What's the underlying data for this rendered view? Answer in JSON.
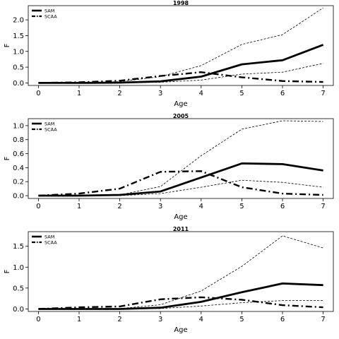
{
  "chart_data": [
    {
      "type": "line",
      "title": "1998",
      "xlabel": "Age",
      "ylabel": "F",
      "x": [
        0,
        1,
        2,
        3,
        4,
        5,
        6,
        7
      ],
      "x_ticks": [
        "0",
        "1",
        "2",
        "3",
        "4",
        "5",
        "6",
        "7"
      ],
      "xlim": [
        -0.25,
        7.25
      ],
      "ylim": [
        -0.08,
        2.45
      ],
      "y_ticks": [
        "0.0",
        "0.5",
        "1.0",
        "1.5",
        "2.0"
      ],
      "y_tick_values": [
        0,
        0.5,
        1.0,
        1.5,
        2.0
      ],
      "legend": {
        "position": "top-left",
        "entries": [
          "SAM",
          "SCAA"
        ]
      },
      "series": [
        {
          "name": "SAM",
          "style": "solid-thick",
          "values": [
            0.0,
            0.0,
            0.01,
            0.05,
            0.2,
            0.59,
            0.72,
            1.21
          ]
        },
        {
          "name": "SAM upper",
          "style": "dashed-thin",
          "values": [
            0.0,
            0.01,
            0.04,
            0.2,
            0.55,
            1.22,
            1.53,
            2.38
          ]
        },
        {
          "name": "SAM lower",
          "style": "dashed-thin",
          "values": [
            0.0,
            0.0,
            0.0,
            0.02,
            0.09,
            0.28,
            0.34,
            0.62
          ]
        },
        {
          "name": "SCAA",
          "style": "dashdot-thick",
          "values": [
            0.0,
            0.02,
            0.07,
            0.22,
            0.34,
            0.18,
            0.06,
            0.03
          ]
        }
      ]
    },
    {
      "type": "line",
      "title": "2005",
      "xlabel": "Age",
      "ylabel": "F",
      "x": [
        0,
        1,
        2,
        3,
        4,
        5,
        6,
        7
      ],
      "x_ticks": [
        "0",
        "1",
        "2",
        "3",
        "4",
        "5",
        "6",
        "7"
      ],
      "xlim": [
        -0.25,
        7.25
      ],
      "ylim": [
        -0.04,
        1.1
      ],
      "y_ticks": [
        "0.0",
        "0.2",
        "0.4",
        "0.6",
        "0.8",
        "1.0"
      ],
      "y_tick_values": [
        0,
        0.2,
        0.4,
        0.6,
        0.8,
        1.0
      ],
      "legend": {
        "position": "top-left",
        "entries": [
          "SAM",
          "SCAA"
        ]
      },
      "series": [
        {
          "name": "SAM",
          "style": "solid-thick",
          "values": [
            0.0,
            0.0,
            0.01,
            0.06,
            0.26,
            0.46,
            0.45,
            0.36
          ]
        },
        {
          "name": "SAM upper",
          "style": "dashed-thin",
          "values": [
            0.0,
            0.0,
            0.01,
            0.13,
            0.57,
            0.95,
            1.07,
            1.06
          ]
        },
        {
          "name": "SAM lower",
          "style": "dashed-thin",
          "values": [
            0.0,
            0.0,
            0.0,
            0.03,
            0.12,
            0.22,
            0.19,
            0.12
          ]
        },
        {
          "name": "SCAA",
          "style": "dashdot-thick",
          "values": [
            0.0,
            0.03,
            0.1,
            0.34,
            0.35,
            0.12,
            0.03,
            0.01
          ]
        }
      ]
    },
    {
      "type": "line",
      "title": "2011",
      "xlabel": "Age",
      "ylabel": "F",
      "x": [
        0,
        1,
        2,
        3,
        4,
        5,
        6,
        7
      ],
      "x_ticks": [
        "0",
        "1",
        "2",
        "3",
        "4",
        "5",
        "6",
        "7"
      ],
      "xlim": [
        -0.25,
        7.25
      ],
      "ylim": [
        -0.06,
        1.85
      ],
      "y_ticks": [
        "0.0",
        "0.5",
        "1.0",
        "1.5"
      ],
      "y_tick_values": [
        0,
        0.5,
        1.0,
        1.5
      ],
      "legend": {
        "position": "top-left",
        "entries": [
          "SAM",
          "SCAA"
        ]
      },
      "series": [
        {
          "name": "SAM",
          "style": "solid-thick",
          "values": [
            0.0,
            0.0,
            0.0,
            0.03,
            0.17,
            0.4,
            0.61,
            0.57
          ]
        },
        {
          "name": "SAM upper",
          "style": "dashed-thin",
          "values": [
            0.0,
            0.0,
            0.01,
            0.1,
            0.43,
            1.02,
            1.75,
            1.46
          ]
        },
        {
          "name": "SAM lower",
          "style": "dashed-thin",
          "values": [
            0.0,
            0.0,
            0.0,
            0.01,
            0.07,
            0.15,
            0.2,
            0.2
          ]
        },
        {
          "name": "SCAA",
          "style": "dashdot-thick",
          "values": [
            0.0,
            0.04,
            0.06,
            0.23,
            0.28,
            0.22,
            0.09,
            0.04
          ]
        }
      ]
    }
  ]
}
